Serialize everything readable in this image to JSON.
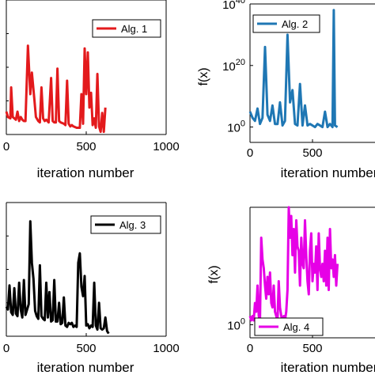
{
  "chart_data": [
    {
      "type": "line",
      "xlabel": "iteration number",
      "ylabel": "",
      "xlim": [
        0,
        1000
      ],
      "xticks": [
        "0",
        "500",
        "1000"
      ],
      "ylim": [
        0,
        1
      ],
      "legend": {
        "placement": "top-right",
        "label": "Alg. 1"
      },
      "series": [
        {
          "name": "Alg. 1",
          "color": "#e31a1c",
          "x": [
            0,
            10,
            25,
            30,
            40,
            50,
            60,
            70,
            80,
            90,
            100,
            110,
            120,
            135,
            150,
            160,
            175,
            185,
            200,
            210,
            220,
            230,
            240,
            250,
            265,
            280,
            290,
            300,
            310,
            320,
            330,
            340,
            360,
            370,
            380,
            390,
            400,
            410,
            420,
            440,
            460,
            470,
            480,
            490,
            500,
            510,
            520,
            530,
            540,
            550,
            560,
            570,
            580,
            590,
            600,
            610,
            620
          ],
          "y": [
            0.17,
            0.13,
            0.12,
            0.35,
            0.13,
            0.12,
            0.11,
            0.17,
            0.1,
            0.13,
            0.11,
            0.1,
            0.1,
            0.66,
            0.3,
            0.46,
            0.27,
            0.13,
            0.1,
            0.09,
            0.35,
            0.12,
            0.1,
            0.11,
            0.09,
            0.42,
            0.1,
            0.09,
            0.09,
            0.49,
            0.1,
            0.09,
            0.08,
            0.07,
            0.4,
            0.08,
            0.06,
            0.07,
            0.06,
            0.05,
            0.05,
            0.3,
            0.08,
            0.64,
            0.3,
            0.61,
            0.2,
            0.31,
            0.07,
            0.12,
            0.05,
            0.45,
            0.06,
            0.02,
            0.16,
            0.02,
            0.2
          ]
        }
      ]
    },
    {
      "type": "line",
      "xlabel": "iteration number",
      "ylabel": "f(x)",
      "yscale": "log",
      "xlim": [
        0,
        1000
      ],
      "xticks": [
        "0",
        "500"
      ],
      "ylim": [
        -5,
        40
      ],
      "yticks": [
        {
          "base": "10",
          "exp": "0",
          "value": 0
        },
        {
          "base": "10",
          "exp": "20",
          "value": 20
        },
        {
          "base": "10",
          "exp": "40",
          "value": 40
        }
      ],
      "legend": {
        "placement": "top-right",
        "label": "Alg. 2"
      },
      "series": [
        {
          "name": "Alg. 2",
          "color": "#1f77b4",
          "x": [
            0,
            20,
            40,
            60,
            80,
            100,
            120,
            140,
            160,
            180,
            200,
            220,
            240,
            260,
            280,
            300,
            320,
            340,
            360,
            380,
            400,
            420,
            440,
            460,
            480,
            500,
            520,
            540,
            560,
            580,
            600,
            620,
            640,
            660,
            670,
            680,
            700
          ],
          "y": [
            5,
            3,
            2,
            6,
            1,
            3,
            26,
            4,
            2,
            7,
            1,
            1,
            8,
            0.5,
            2,
            30,
            8,
            12,
            1,
            0.5,
            14,
            0.5,
            7,
            0.5,
            1,
            0.5,
            0,
            1,
            0.5,
            0,
            5,
            0,
            1,
            0,
            38,
            0.5,
            0
          ]
        }
      ]
    },
    {
      "type": "line",
      "xlabel": "iteration number",
      "ylabel": "",
      "xlim": [
        0,
        1000
      ],
      "xticks": [
        "0",
        "500",
        "1000"
      ],
      "ylim": [
        0,
        1
      ],
      "legend": {
        "placement": "top-right",
        "label": "Alg. 3"
      },
      "series": [
        {
          "name": "Alg. 3",
          "color": "#000000",
          "x": [
            0,
            10,
            20,
            30,
            40,
            50,
            60,
            70,
            80,
            90,
            100,
            110,
            120,
            130,
            140,
            150,
            160,
            170,
            180,
            190,
            200,
            210,
            220,
            230,
            240,
            250,
            260,
            270,
            280,
            290,
            300,
            310,
            320,
            330,
            340,
            350,
            360,
            370,
            380,
            390,
            400,
            410,
            420,
            430,
            440,
            450,
            460,
            470,
            480,
            490,
            500,
            510,
            520,
            530,
            540,
            550,
            560,
            570,
            580,
            590,
            600,
            610,
            620,
            630,
            640
          ],
          "y": [
            0.22,
            0.2,
            0.38,
            0.18,
            0.16,
            0.36,
            0.17,
            0.15,
            0.4,
            0.2,
            0.14,
            0.42,
            0.16,
            0.2,
            0.24,
            0.86,
            0.55,
            0.43,
            0.19,
            0.15,
            0.13,
            0.53,
            0.15,
            0.13,
            0.12,
            0.4,
            0.14,
            0.33,
            0.11,
            0.12,
            0.42,
            0.11,
            0.11,
            0.25,
            0.09,
            0.1,
            0.29,
            0.08,
            0.07,
            0.1,
            0.09,
            0.1,
            0.07,
            0.08,
            0.07,
            0.55,
            0.62,
            0.37,
            0.3,
            0.45,
            0.08,
            0.09,
            0.06,
            0.08,
            0.07,
            0.4,
            0.08,
            0.05,
            0.25,
            0.06,
            0.05,
            0.06,
            0.14,
            0.04,
            0.02
          ]
        }
      ]
    },
    {
      "type": "line",
      "xlabel": "iteration number",
      "ylabel": "f(x)",
      "yscale": "log",
      "xlim": [
        0,
        1000
      ],
      "xticks": [
        "0",
        "500"
      ],
      "ylim": [
        -3,
        27
      ],
      "yticks": [
        {
          "base": "10",
          "exp": "0",
          "value": 0
        }
      ],
      "legend": {
        "placement": "bottom-right",
        "label": "Alg. 4"
      },
      "series": [
        {
          "name": "Alg. 4",
          "color": "#e600e6",
          "x": [
            0,
            10,
            20,
            30,
            40,
            50,
            60,
            70,
            80,
            90,
            100,
            110,
            120,
            130,
            140,
            150,
            160,
            170,
            180,
            190,
            200,
            210,
            220,
            230,
            240,
            250,
            260,
            270,
            280,
            290,
            300,
            310,
            320,
            330,
            340,
            350,
            360,
            370,
            380,
            390,
            400,
            410,
            420,
            430,
            440,
            450,
            460,
            470,
            480,
            490,
            500,
            510,
            520,
            530,
            540,
            550,
            560,
            570,
            580,
            590,
            600,
            610,
            620,
            630,
            640,
            650,
            660,
            670,
            680,
            690,
            700
          ],
          "y": [
            2,
            1,
            2,
            1,
            5,
            3,
            9,
            2,
            1,
            20,
            15,
            13,
            9,
            6,
            11,
            7,
            12,
            5,
            4,
            9,
            3,
            2,
            1,
            10,
            4,
            2,
            1,
            2,
            1,
            3,
            8,
            27,
            20,
            25,
            16,
            22,
            12,
            24,
            18,
            17,
            9,
            20,
            14,
            13,
            24,
            16,
            10,
            7,
            17,
            21,
            10,
            14,
            12,
            18,
            8,
            21,
            13,
            11,
            14,
            10,
            17,
            9,
            20,
            8,
            22,
            13,
            15,
            11,
            16,
            9,
            14
          ]
        }
      ]
    }
  ]
}
